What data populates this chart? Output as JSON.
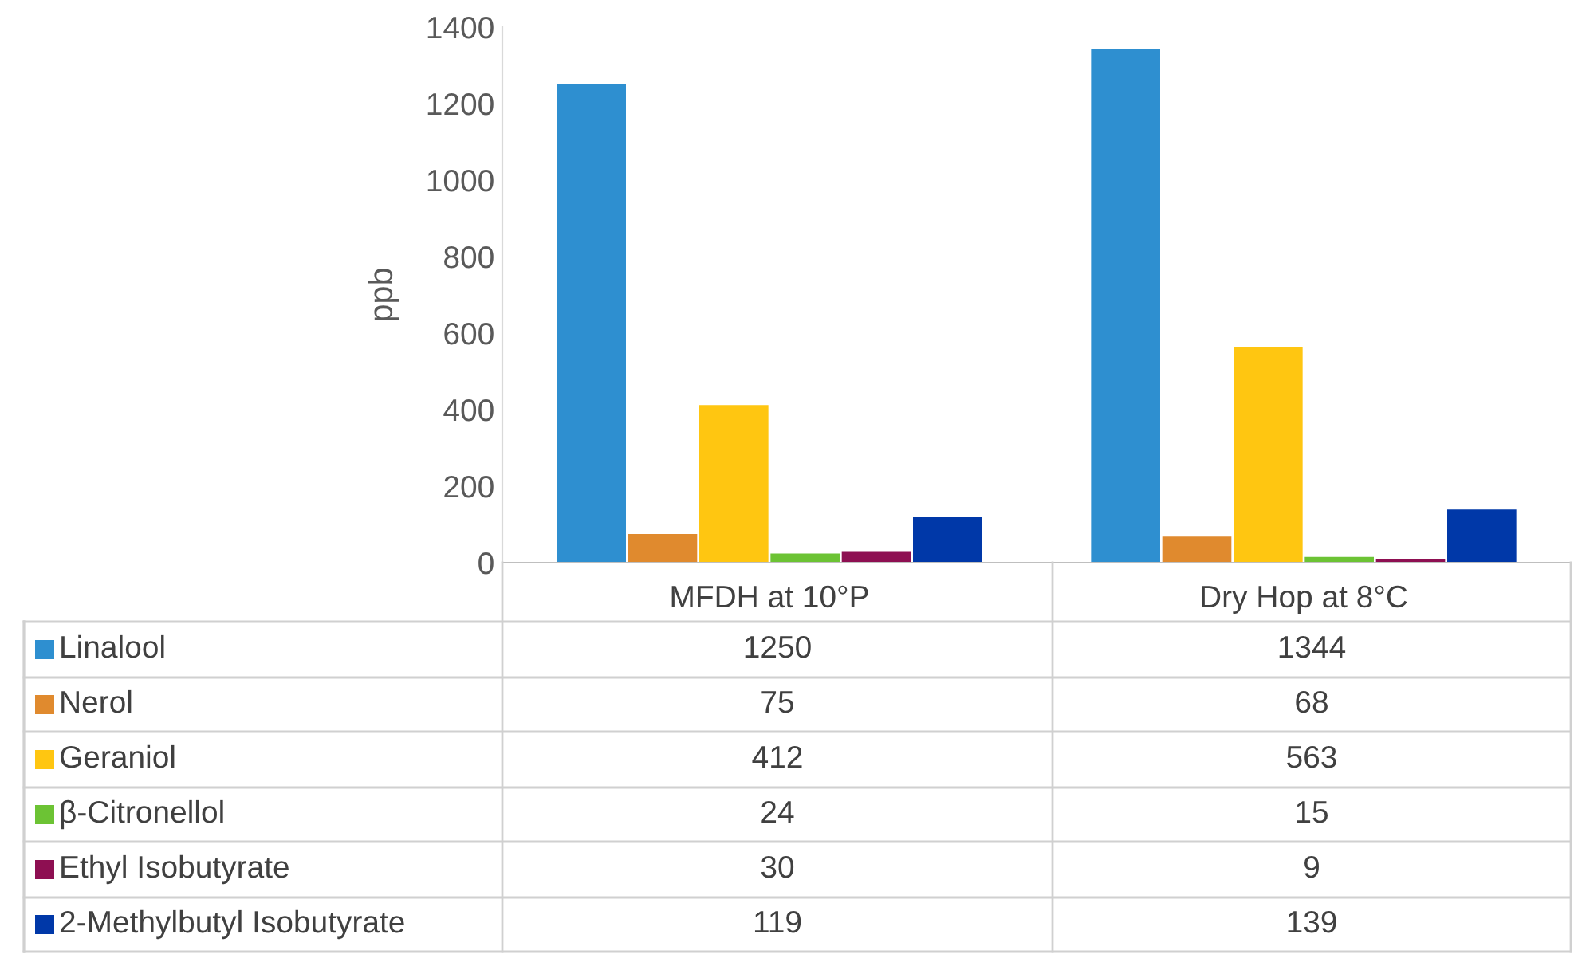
{
  "chart_data": {
    "type": "bar",
    "ylabel": "ppb",
    "categories": [
      "MFDH at 10°P",
      "Dry Hop at 8°C"
    ],
    "series": [
      {
        "name": "Linalool",
        "color": "#2e8fd0",
        "values": [
          1250,
          1344
        ]
      },
      {
        "name": "Nerol",
        "color": "#e08a2e",
        "values": [
          75,
          68
        ]
      },
      {
        "name": "Geraniol",
        "color": "#ffc611",
        "values": [
          412,
          563
        ]
      },
      {
        "name": "β-Citronellol",
        "color": "#6cc334",
        "values": [
          24,
          15
        ]
      },
      {
        "name": "Ethyl Isobutyrate",
        "color": "#8e0f52",
        "values": [
          30,
          9
        ]
      },
      {
        "name": "2-Methylbutyl Isobutyrate",
        "color": "#0038a8",
        "values": [
          119,
          139
        ]
      }
    ],
    "ylim": [
      0,
      1400
    ],
    "yticks": [
      0,
      200,
      400,
      600,
      800,
      1000,
      1200,
      1400
    ],
    "grid": false,
    "legend": "bottom",
    "data_labels": true
  }
}
